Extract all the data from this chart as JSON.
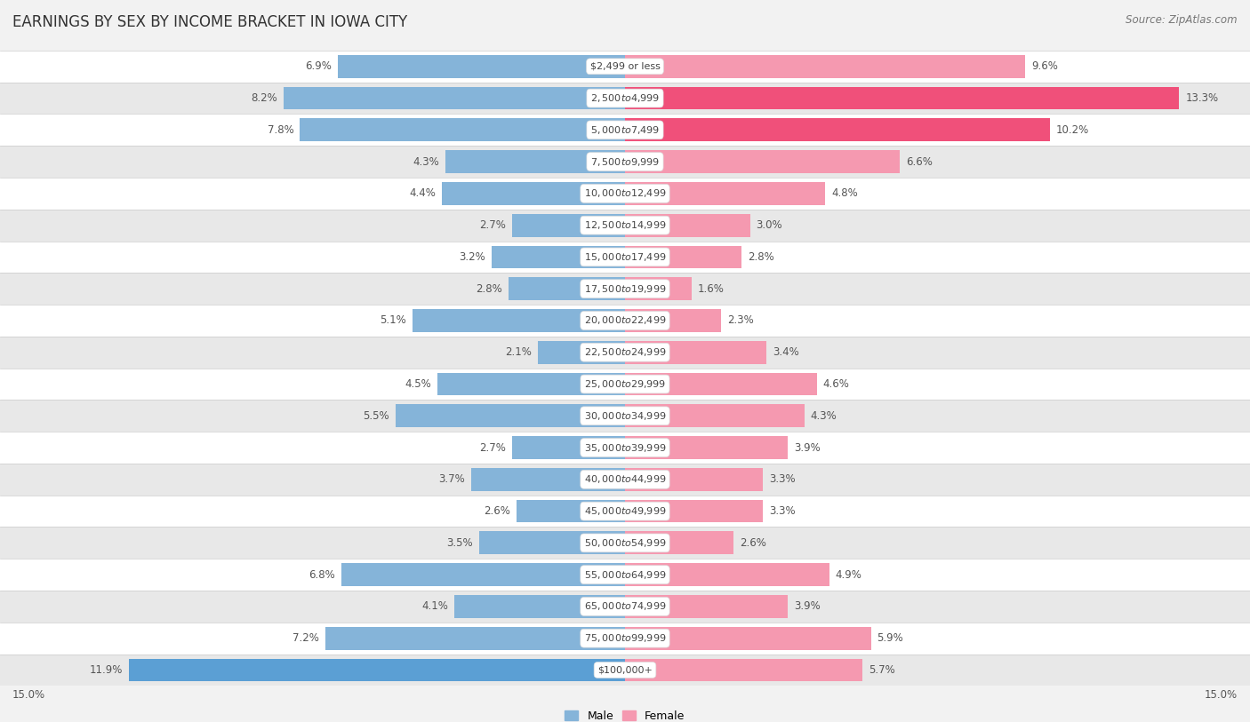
{
  "title": "EARNINGS BY SEX BY INCOME BRACKET IN IOWA CITY",
  "source": "Source: ZipAtlas.com",
  "categories": [
    "$2,499 or less",
    "$2,500 to $4,999",
    "$5,000 to $7,499",
    "$7,500 to $9,999",
    "$10,000 to $12,499",
    "$12,500 to $14,999",
    "$15,000 to $17,499",
    "$17,500 to $19,999",
    "$20,000 to $22,499",
    "$22,500 to $24,999",
    "$25,000 to $29,999",
    "$30,000 to $34,999",
    "$35,000 to $39,999",
    "$40,000 to $44,999",
    "$45,000 to $49,999",
    "$50,000 to $54,999",
    "$55,000 to $64,999",
    "$65,000 to $74,999",
    "$75,000 to $99,999",
    "$100,000+"
  ],
  "male_values": [
    6.9,
    8.2,
    7.8,
    4.3,
    4.4,
    2.7,
    3.2,
    2.8,
    5.1,
    2.1,
    4.5,
    5.5,
    2.7,
    3.7,
    2.6,
    3.5,
    6.8,
    4.1,
    7.2,
    11.9
  ],
  "female_values": [
    9.6,
    13.3,
    10.2,
    6.6,
    4.8,
    3.0,
    2.8,
    1.6,
    2.3,
    3.4,
    4.6,
    4.3,
    3.9,
    3.3,
    3.3,
    2.6,
    4.9,
    3.9,
    5.9,
    5.7
  ],
  "male_color": "#85b4d9",
  "female_color": "#f599b0",
  "male_highlight_color": "#5b9fd4",
  "female_highlight_color": "#f0507a",
  "highlight_male_indices": [
    19
  ],
  "highlight_female_indices": [
    1,
    2
  ],
  "background_color": "#f2f2f2",
  "row_color_odd": "#ffffff",
  "row_color_even": "#e8e8e8",
  "xlim": 15.0,
  "title_fontsize": 12,
  "source_fontsize": 8.5,
  "label_fontsize": 8.5,
  "bar_height": 0.72
}
